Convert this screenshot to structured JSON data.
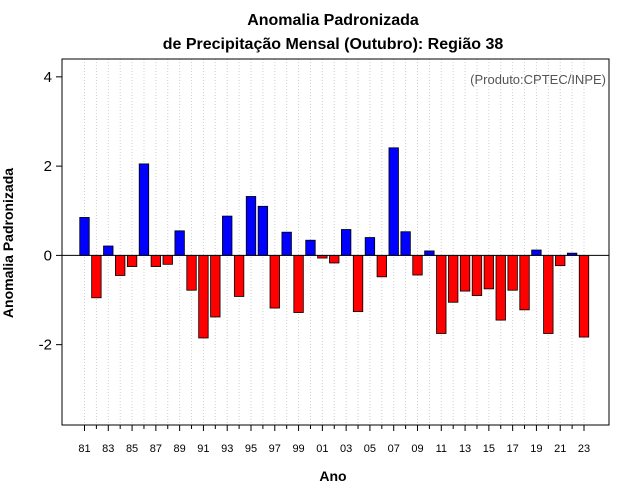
{
  "chart_data": {
    "type": "bar",
    "title_line1": "Anomalia Padronizada",
    "title_line2": "de Precipitação Mensal (Outubro): Região 38",
    "xlabel": "Ano",
    "ylabel": "Anomalia Padronizada",
    "annotation": "(Produto:CPTEC/INPE)",
    "ylim": [
      -3.8,
      4.4
    ],
    "yticks": [
      -2,
      0,
      2,
      4
    ],
    "ytick_labels": [
      "-2",
      "0",
      "2",
      "4"
    ],
    "xtick_labels": [
      "81",
      "83",
      "85",
      "87",
      "89",
      "91",
      "93",
      "95",
      "97",
      "99",
      "01",
      "03",
      "05",
      "07",
      "09",
      "11",
      "13",
      "15",
      "17",
      "19",
      "21",
      "23"
    ],
    "grid": true,
    "positive_color": "#0000ff",
    "negative_color": "#ff0000",
    "categories": [
      "1981",
      "1982",
      "1983",
      "1984",
      "1985",
      "1986",
      "1987",
      "1988",
      "1989",
      "1990",
      "1991",
      "1992",
      "1993",
      "1994",
      "1995",
      "1996",
      "1997",
      "1998",
      "1999",
      "2000",
      "2001",
      "2002",
      "2003",
      "2004",
      "2005",
      "2006",
      "2007",
      "2008",
      "2009",
      "2010",
      "2011",
      "2012",
      "2013",
      "2014",
      "2015",
      "2016",
      "2017",
      "2018",
      "2019",
      "2020",
      "2021",
      "2022",
      "2023"
    ],
    "values": [
      0.85,
      -0.95,
      0.21,
      -0.45,
      -0.25,
      2.05,
      -0.25,
      -0.2,
      0.55,
      -0.78,
      -1.85,
      -1.38,
      0.88,
      -0.92,
      1.32,
      1.1,
      -1.18,
      0.52,
      -1.28,
      0.34,
      -0.06,
      -0.17,
      0.58,
      -1.26,
      0.4,
      -0.48,
      2.41,
      0.53,
      -0.44,
      0.1,
      -1.75,
      -1.05,
      -0.8,
      -0.9,
      -0.75,
      -1.45,
      -0.78,
      -1.22,
      0.12,
      -1.75,
      -0.23,
      0.05,
      -1.83
    ]
  }
}
